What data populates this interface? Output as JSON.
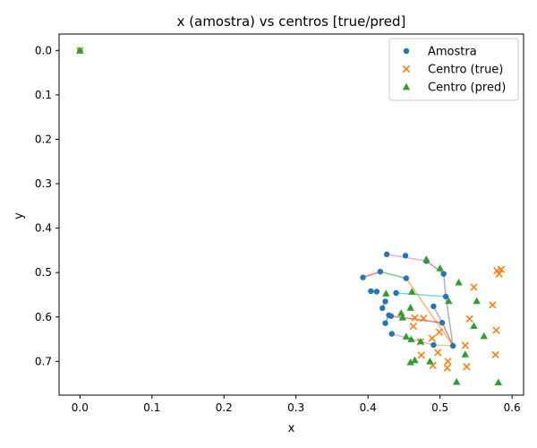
{
  "chart_data": {
    "type": "scatter",
    "title": "x (amostra) vs centros [true/pred]",
    "xlabel": "x",
    "ylabel": "y",
    "xlim": [
      -0.029,
      0.616
    ],
    "ylim": [
      0.776,
      -0.037
    ],
    "y_inverted": true,
    "x_ticks": [
      0.0,
      0.1,
      0.2,
      0.3,
      0.4,
      0.5,
      0.6
    ],
    "x_tick_labels": [
      "0.0",
      "0.1",
      "0.2",
      "0.3",
      "0.4",
      "0.5",
      "0.6"
    ],
    "y_ticks": [
      0.0,
      0.1,
      0.2,
      0.3,
      0.4,
      0.5,
      0.6,
      0.7
    ],
    "y_tick_labels": [
      "0.0",
      "0.1",
      "0.2",
      "0.3",
      "0.4",
      "0.5",
      "0.6",
      "0.7"
    ],
    "grid": false,
    "legend_position": "upper right",
    "colors": {
      "amostra": "#1f77b4",
      "centro_true": "#ff7f0e",
      "centro_pred": "#2ca02c"
    },
    "series": [
      {
        "name": "Amostra",
        "marker": "circle",
        "points": [
          [
            0.0,
            0.0
          ],
          [
            0.426,
            0.459
          ],
          [
            0.452,
            0.462
          ],
          [
            0.481,
            0.474
          ],
          [
            0.393,
            0.511
          ],
          [
            0.417,
            0.498
          ],
          [
            0.453,
            0.513
          ],
          [
            0.505,
            0.503
          ],
          [
            0.404,
            0.542
          ],
          [
            0.412,
            0.543
          ],
          [
            0.439,
            0.546
          ],
          [
            0.508,
            0.554
          ],
          [
            0.424,
            0.565
          ],
          [
            0.42,
            0.58
          ],
          [
            0.491,
            0.576
          ],
          [
            0.429,
            0.596
          ],
          [
            0.432,
            0.598
          ],
          [
            0.503,
            0.613
          ],
          [
            0.424,
            0.614
          ],
          [
            0.433,
            0.638
          ],
          [
            0.491,
            0.663
          ],
          [
            0.518,
            0.665
          ]
        ]
      },
      {
        "name": "Centro (true)",
        "marker": "x",
        "points": [
          [
            0.0,
            0.0
          ],
          [
            0.585,
            0.493
          ],
          [
            0.579,
            0.496
          ],
          [
            0.582,
            0.503
          ],
          [
            0.547,
            0.533
          ],
          [
            0.573,
            0.573
          ],
          [
            0.541,
            0.604
          ],
          [
            0.465,
            0.602
          ],
          [
            0.477,
            0.603
          ],
          [
            0.463,
            0.621
          ],
          [
            0.578,
            0.63
          ],
          [
            0.499,
            0.634
          ],
          [
            0.489,
            0.648
          ],
          [
            0.473,
            0.656
          ],
          [
            0.535,
            0.664
          ],
          [
            0.497,
            0.68
          ],
          [
            0.577,
            0.685
          ],
          [
            0.474,
            0.686
          ],
          [
            0.511,
            0.7
          ],
          [
            0.49,
            0.709
          ],
          [
            0.537,
            0.712
          ],
          [
            0.51,
            0.715
          ]
        ]
      },
      {
        "name": "Centro (pred)",
        "marker": "triangle",
        "points": [
          [
            0.0,
            0.0
          ],
          [
            0.481,
            0.47
          ],
          [
            0.5,
            0.49
          ],
          [
            0.526,
            0.522
          ],
          [
            0.425,
            0.547
          ],
          [
            0.461,
            0.543
          ],
          [
            0.551,
            0.564
          ],
          [
            0.512,
            0.564
          ],
          [
            0.446,
            0.591
          ],
          [
            0.448,
            0.601
          ],
          [
            0.459,
            0.579
          ],
          [
            0.547,
            0.62
          ],
          [
            0.561,
            0.643
          ],
          [
            0.453,
            0.644
          ],
          [
            0.46,
            0.65
          ],
          [
            0.473,
            0.655
          ],
          [
            0.535,
            0.684
          ],
          [
            0.465,
            0.697
          ],
          [
            0.459,
            0.702
          ],
          [
            0.486,
            0.7
          ],
          [
            0.523,
            0.746
          ],
          [
            0.581,
            0.747
          ]
        ]
      }
    ],
    "connections": [
      {
        "from": [
          0.426,
          0.459
        ],
        "to": [
          0.481,
          0.474
        ],
        "color": "#e377c2"
      },
      {
        "from": [
          0.393,
          0.511
        ],
        "to": [
          0.417,
          0.498
        ],
        "color": "#d62728"
      },
      {
        "from": [
          0.417,
          0.498
        ],
        "to": [
          0.453,
          0.513
        ],
        "color": "#2ca02c"
      },
      {
        "from": [
          0.453,
          0.513
        ],
        "to": [
          0.518,
          0.665
        ],
        "color": "#ff7f0e"
      },
      {
        "from": [
          0.505,
          0.503
        ],
        "to": [
          0.508,
          0.554
        ],
        "color": "#9467bd"
      },
      {
        "from": [
          0.481,
          0.474
        ],
        "to": [
          0.505,
          0.503
        ],
        "color": "#8c564b"
      },
      {
        "from": [
          0.439,
          0.546
        ],
        "to": [
          0.508,
          0.554
        ],
        "color": "#17becf"
      },
      {
        "from": [
          0.424,
          0.565
        ],
        "to": [
          0.42,
          0.58
        ],
        "color": "#8c564b"
      },
      {
        "from": [
          0.491,
          0.576
        ],
        "to": [
          0.503,
          0.613
        ],
        "color": "#9467bd"
      },
      {
        "from": [
          0.432,
          0.598
        ],
        "to": [
          0.503,
          0.613
        ],
        "color": "#d62728"
      },
      {
        "from": [
          0.503,
          0.613
        ],
        "to": [
          0.518,
          0.665
        ],
        "color": "#8c564b"
      },
      {
        "from": [
          0.433,
          0.638
        ],
        "to": [
          0.491,
          0.663
        ],
        "color": "#e377c2"
      },
      {
        "from": [
          0.491,
          0.663
        ],
        "to": [
          0.518,
          0.665
        ],
        "color": "#bcbd22"
      },
      {
        "from": [
          0.424,
          0.614
        ],
        "to": [
          0.429,
          0.596
        ],
        "color": "#1f77b4"
      },
      {
        "from": [
          0.518,
          0.665
        ],
        "to": [
          0.508,
          0.554
        ],
        "color": "#7f7f7f"
      },
      {
        "from": [
          0.404,
          0.542
        ],
        "to": [
          0.412,
          0.543
        ],
        "color": "#8c564b"
      }
    ]
  }
}
